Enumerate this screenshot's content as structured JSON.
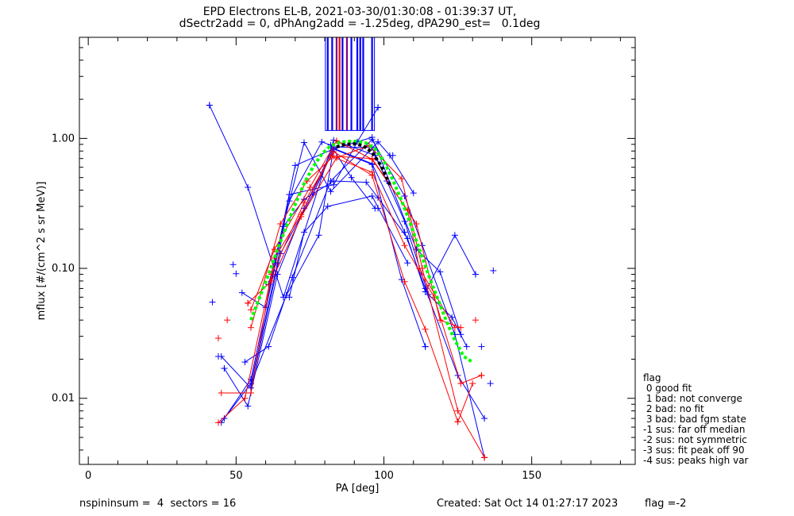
{
  "header": {
    "title_line1": "EPD Electrons EL-B, 2021-03-30/01:30:08 - 01:39:37 UT,",
    "title_line2": "dSectr2add = 0, dPhAng2add = -1.25deg, dPA290_est=   0.1deg"
  },
  "legend": {
    "title": "flag",
    "items": [
      " 0 good fit",
      " 1 bad: not converge",
      " 2 bad: no fit",
      " 3 bad: bad fgm state",
      "-1 sus: far off median",
      "-2 sus: not symmetric",
      "-3 sus: fit peak off 90",
      "-4 sus: peaks high var"
    ]
  },
  "footer": {
    "left": "nspininsum =  4  sectors = 16",
    "middle": "Created: Sat Oct 14 01:27:17 2023",
    "right": "flag =-2"
  },
  "colors": {
    "blue": "#0000ff",
    "red": "#ff0000",
    "green": "#00ff00",
    "black": "#000000",
    "purple": "#800080"
  },
  "chart_data": {
    "type": "line",
    "xlabel": "PA [deg]",
    "ylabel": "mflux [#/(cm^2 s sr MeV)]",
    "xlim": [
      -3,
      185
    ],
    "ylim": [
      0.0031,
      6.0
    ],
    "yscale": "log",
    "x_ticks": [
      0,
      50,
      100,
      150
    ],
    "x_tick_labels": [
      "0",
      "50",
      "100",
      "150"
    ],
    "y_ticks": [
      0.01,
      0.1,
      1.0
    ],
    "y_tick_labels": [
      "0.01",
      "0.10",
      "1.00"
    ],
    "series": [
      {
        "color": "blue",
        "x": [
          41,
          54,
          66,
          83,
          97,
          101
        ],
        "y": [
          1.8,
          0.42,
          0.06,
          0.97,
          0.74,
          0.47
        ]
      },
      {
        "color": "blue",
        "x": [
          45,
          55,
          65,
          76,
          83,
          96,
          106,
          114
        ],
        "y": [
          0.021,
          0.012,
          0.13,
          0.37,
          0.83,
          0.63,
          0.082,
          0.025
        ]
      },
      {
        "color": "blue",
        "x": [
          46,
          54,
          64,
          73,
          83,
          96,
          107,
          115,
          123,
          128
        ],
        "y": [
          0.017,
          0.0087,
          0.09,
          0.29,
          0.86,
          0.85,
          0.23,
          0.063,
          0.042,
          0.025
        ]
      },
      {
        "color": "blue",
        "x": [
          45,
          55,
          66,
          73,
          83,
          94,
          98,
          108,
          114,
          124,
          131
        ],
        "y": [
          0.0065,
          0.014,
          0.21,
          0.34,
          0.47,
          0.46,
          0.35,
          0.17,
          0.066,
          0.18,
          0.09
        ]
      },
      {
        "color": "blue",
        "x": [
          46,
          55,
          67,
          78,
          83,
          96,
          107,
          114,
          125,
          134
        ],
        "y": [
          0.007,
          0.013,
          0.062,
          0.18,
          0.84,
          0.64,
          0.19,
          0.07,
          0.015,
          0.007
        ]
      },
      {
        "color": "blue",
        "x": [
          52,
          60,
          70,
          83,
          96,
          111,
          119,
          126
        ],
        "y": [
          0.065,
          0.05,
          0.62,
          0.83,
          1.02,
          0.14,
          0.094,
          0.031
        ]
      },
      {
        "color": "blue",
        "x": [
          53,
          61,
          69,
          82,
          96,
          107,
          113,
          124,
          134
        ],
        "y": [
          0.019,
          0.025,
          0.085,
          0.47,
          0.98,
          0.36,
          0.15,
          0.031,
          0.0035
        ]
      },
      {
        "color": "blue",
        "x": [
          55,
          64,
          68,
          83,
          91,
          98
        ],
        "y": [
          0.013,
          0.11,
          0.37,
          0.44,
          0.94,
          1.73
        ]
      },
      {
        "color": "blue",
        "x": [
          68,
          79,
          82,
          89,
          97,
          98
        ],
        "y": [
          0.33,
          0.94,
          0.89,
          0.5,
          0.29,
          0.29
        ]
      },
      {
        "color": "blue",
        "x": [
          61,
          73,
          82,
          98,
          102,
          110
        ],
        "y": [
          0.075,
          0.93,
          0.39,
          0.94,
          0.74,
          0.38
        ]
      },
      {
        "color": "blue",
        "x": [
          68,
          73,
          81,
          96,
          108
        ],
        "y": [
          0.06,
          0.19,
          0.3,
          0.36,
          0.11
        ]
      },
      {
        "color": "red",
        "x": [
          44,
          53,
          62,
          73,
          83,
          96,
          107,
          114,
          125,
          130
        ],
        "y": [
          0.0065,
          0.01,
          0.09,
          0.32,
          0.79,
          0.52,
          0.079,
          0.034,
          0.0066,
          0.013
        ]
      },
      {
        "color": "red",
        "x": [
          45,
          55,
          63,
          72,
          82,
          96,
          107,
          117,
          126,
          133
        ],
        "y": [
          0.011,
          0.011,
          0.12,
          0.26,
          0.73,
          0.55,
          0.15,
          0.06,
          0.013,
          0.015
        ]
      },
      {
        "color": "red",
        "x": [
          54,
          62,
          72,
          84,
          95,
          106,
          113,
          125,
          134
        ],
        "y": [
          0.054,
          0.08,
          0.25,
          0.71,
          0.88,
          0.49,
          0.1,
          0.008,
          0.0035
        ]
      },
      {
        "color": "red",
        "x": [
          55,
          63,
          75,
          84,
          96,
          108,
          112,
          124
        ],
        "y": [
          0.048,
          0.14,
          0.42,
          0.96,
          0.69,
          0.28,
          0.1,
          0.035
        ]
      },
      {
        "color": "red",
        "x": [
          55,
          65,
          74,
          83,
          96,
          111,
          119,
          126
        ],
        "y": [
          0.035,
          0.22,
          0.47,
          0.73,
          0.7,
          0.22,
          0.04,
          0.035
        ]
      }
    ],
    "markers": {
      "blue": [
        [
          42,
          0.055
        ],
        [
          44,
          0.021
        ],
        [
          46,
          0.017
        ],
        [
          49,
          0.107
        ],
        [
          50,
          0.091
        ],
        [
          41,
          1.8
        ],
        [
          136,
          0.013
        ],
        [
          137,
          0.096
        ],
        [
          131,
          0.09
        ],
        [
          133,
          0.025
        ],
        [
          114,
          0.025
        ],
        [
          103,
          0.74
        ],
        [
          98,
          1.73
        ]
      ],
      "red": [
        [
          44,
          0.029
        ],
        [
          47,
          0.04
        ],
        [
          54,
          0.054
        ],
        [
          131,
          0.04
        ],
        [
          133,
          0.015
        ],
        [
          125,
          0.0066
        ],
        [
          134,
          0.0035
        ]
      ]
    },
    "fits": [
      {
        "color": "green",
        "x": [
          55,
          58,
          61,
          64,
          67,
          70,
          73,
          76,
          79,
          82,
          85,
          88,
          91,
          94,
          97,
          100,
          103,
          106,
          109,
          112,
          115,
          118,
          121,
          124,
          127,
          130
        ],
        "y": [
          0.04,
          0.06,
          0.09,
          0.14,
          0.21,
          0.31,
          0.45,
          0.6,
          0.76,
          0.88,
          0.93,
          0.95,
          0.95,
          0.92,
          0.83,
          0.67,
          0.48,
          0.33,
          0.22,
          0.14,
          0.09,
          0.06,
          0.04,
          0.028,
          0.021,
          0.019
        ]
      },
      {
        "color": "black",
        "x": [
          84,
          87,
          90,
          93,
          96,
          99,
          102
        ],
        "y": [
          0.86,
          0.9,
          0.91,
          0.88,
          0.78,
          0.62,
          0.44
        ]
      }
    ],
    "spikes": [
      {
        "color": "blue",
        "x": 81,
        "top": 6.0
      },
      {
        "color": "blue",
        "x": 82.5,
        "top": 6.0
      },
      {
        "color": "purple",
        "x": 84,
        "top": 6.0
      },
      {
        "color": "red",
        "x": 85,
        "top": 6.0
      },
      {
        "color": "blue",
        "x": 86,
        "top": 6.0
      },
      {
        "color": "purple",
        "x": 87.5,
        "top": 6.0
      },
      {
        "color": "blue",
        "x": 89,
        "top": 6.0
      },
      {
        "color": "blue",
        "x": 91,
        "top": 6.0
      },
      {
        "color": "blue",
        "x": 92,
        "top": 6.0
      },
      {
        "color": "blue",
        "x": 93,
        "top": 6.0
      },
      {
        "color": "blue",
        "x": 96,
        "top": 6.0
      }
    ],
    "spike_base": 1.15
  }
}
